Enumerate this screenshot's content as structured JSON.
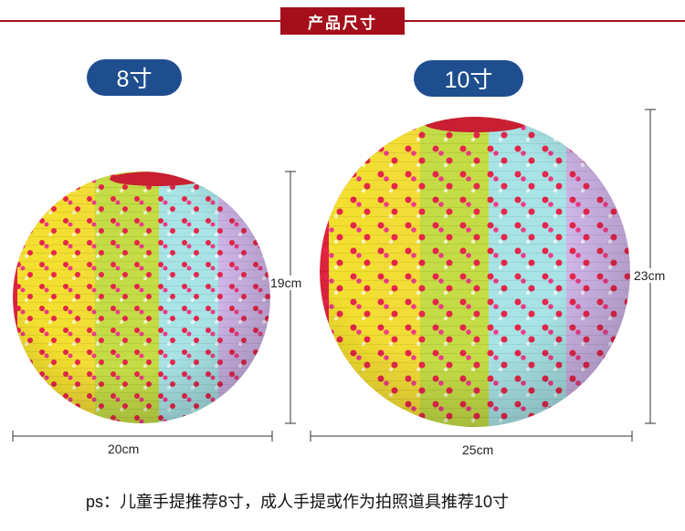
{
  "header": {
    "title": "产品尺寸"
  },
  "lanterns": [
    {
      "size_label": "8寸",
      "width_label": "20cm",
      "height_label": "19cm"
    },
    {
      "size_label": "10寸",
      "width_label": "25cm",
      "height_label": "23cm"
    }
  ],
  "footer": {
    "note": "ps：儿童手提推荐8寸，成人手提或作为拍照道具推荐10寸"
  },
  "colors": {
    "header_red": "#a40f1b",
    "pill_blue": "#1f4e8f",
    "stripe_red": "#e0243c",
    "stripe_yellow": "#f3df2f",
    "stripe_green": "#b8d84a",
    "stripe_cyan": "#9fe0e2",
    "stripe_purple": "#d8a7e6"
  }
}
